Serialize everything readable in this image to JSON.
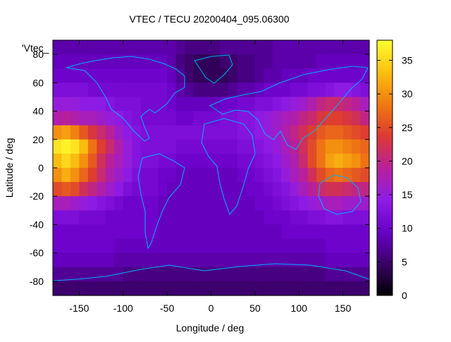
{
  "chart_data": {
    "type": "heatmap",
    "title": "VTEC / TECU 20200404_095.06300",
    "xlabel": "Longitude / deg",
    "ylabel": "Latitude / deg",
    "series_key": "'Vtec_",
    "xlim": [
      -180,
      180
    ],
    "ylim": [
      -90,
      90
    ],
    "x_ticks": [
      -150,
      -100,
      -50,
      0,
      50,
      100,
      150
    ],
    "y_ticks": [
      -80,
      -60,
      -40,
      -20,
      0,
      20,
      40,
      60,
      80
    ],
    "colorbar": {
      "min": 0,
      "max": 38,
      "ticks": [
        0,
        5,
        10,
        15,
        20,
        25,
        30,
        35
      ]
    },
    "grid": false,
    "colormap": [
      "#000000",
      "#3a0068",
      "#6a00c8",
      "#8f1ce6",
      "#b8209a",
      "#dd3a32",
      "#f07a10",
      "#fbc010",
      "#ffff30"
    ],
    "values_description_free": true,
    "x": [
      -175,
      -165,
      -155,
      -145,
      -135,
      -125,
      -115,
      -105,
      -95,
      -85,
      -75,
      -65,
      -55,
      -45,
      -35,
      -25,
      -15,
      -5,
      5,
      15,
      25,
      35,
      45,
      55,
      65,
      75,
      85,
      95,
      105,
      115,
      125,
      135,
      145,
      155,
      165,
      175
    ],
    "y": [
      85,
      75,
      65,
      55,
      45,
      35,
      25,
      15,
      5,
      -5,
      -15,
      -25,
      -35,
      -45,
      -55,
      -65,
      -75,
      -85
    ],
    "z": [
      [
        8,
        8,
        8,
        8,
        8,
        8,
        8,
        8,
        8,
        8,
        8,
        8,
        8,
        8,
        7,
        6,
        6,
        6,
        6,
        7,
        7,
        7,
        7,
        7,
        7,
        8,
        8,
        8,
        8,
        8,
        8,
        8,
        8,
        8,
        8,
        8
      ],
      [
        9,
        9,
        9,
        9,
        9,
        9,
        9,
        9,
        9,
        9,
        9,
        9,
        9,
        8,
        6,
        5,
        4,
        4,
        4,
        5,
        5,
        6,
        6,
        7,
        7,
        8,
        8,
        8,
        8,
        8,
        9,
        9,
        9,
        9,
        9,
        9
      ],
      [
        10,
        10,
        10,
        10,
        10,
        10,
        10,
        10,
        10,
        10,
        10,
        10,
        10,
        9,
        7,
        5,
        4,
        4,
        4,
        4,
        5,
        6,
        6,
        7,
        8,
        8,
        9,
        9,
        9,
        10,
        10,
        10,
        10,
        10,
        10,
        10
      ],
      [
        12,
        12,
        12,
        12,
        11,
        11,
        11,
        11,
        11,
        11,
        11,
        11,
        11,
        10,
        8,
        7,
        6,
        6,
        6,
        6,
        7,
        8,
        8,
        9,
        10,
        10,
        10,
        11,
        11,
        12,
        12,
        13,
        14,
        14,
        13,
        12
      ],
      [
        15,
        15,
        15,
        14,
        14,
        14,
        13,
        12,
        12,
        12,
        11,
        11,
        11,
        10,
        9,
        9,
        9,
        9,
        9,
        10,
        10,
        11,
        11,
        12,
        12,
        13,
        14,
        15,
        16,
        18,
        20,
        21,
        21,
        20,
        19,
        17
      ],
      [
        18,
        19,
        18,
        17,
        17,
        16,
        15,
        14,
        13,
        12,
        11,
        11,
        11,
        11,
        10,
        10,
        11,
        11,
        11,
        12,
        12,
        13,
        13,
        14,
        15,
        16,
        17,
        18,
        20,
        21,
        23,
        24,
        24,
        23,
        22,
        20
      ],
      [
        30,
        31,
        29,
        26,
        23,
        21,
        19,
        16,
        14,
        13,
        12,
        12,
        12,
        12,
        12,
        12,
        12,
        12,
        12,
        12,
        12,
        13,
        13,
        14,
        15,
        16,
        18,
        20,
        22,
        24,
        26,
        27,
        27,
        26,
        25,
        24
      ],
      [
        36,
        37,
        36,
        33,
        28,
        24,
        21,
        18,
        15,
        13,
        12,
        12,
        12,
        12,
        11,
        11,
        11,
        11,
        11,
        11,
        11,
        12,
        12,
        13,
        14,
        15,
        17,
        19,
        22,
        25,
        28,
        30,
        30,
        29,
        28,
        27
      ],
      [
        33,
        35,
        33,
        30,
        26,
        22,
        19,
        17,
        15,
        13,
        12,
        12,
        11,
        11,
        10,
        10,
        10,
        10,
        10,
        10,
        10,
        11,
        11,
        12,
        13,
        14,
        16,
        18,
        21,
        25,
        28,
        31,
        32,
        31,
        30,
        28
      ],
      [
        30,
        32,
        30,
        27,
        24,
        21,
        18,
        16,
        14,
        12,
        11,
        11,
        10,
        10,
        9,
        9,
        9,
        9,
        9,
        9,
        9,
        10,
        10,
        11,
        12,
        13,
        15,
        17,
        19,
        22,
        25,
        27,
        28,
        27,
        26,
        25
      ],
      [
        25,
        26,
        25,
        22,
        20,
        18,
        16,
        14,
        12,
        11,
        11,
        11,
        10,
        9,
        9,
        9,
        9,
        9,
        9,
        9,
        9,
        9,
        10,
        10,
        11,
        12,
        13,
        15,
        17,
        19,
        21,
        22,
        22,
        21,
        20,
        20
      ],
      [
        17,
        17,
        16,
        15,
        14,
        13,
        12,
        11,
        10,
        10,
        10,
        10,
        9,
        9,
        9,
        9,
        9,
        9,
        9,
        9,
        9,
        9,
        9,
        10,
        10,
        11,
        12,
        13,
        14,
        15,
        16,
        17,
        17,
        16,
        16,
        16
      ],
      [
        12,
        12,
        12,
        11,
        11,
        11,
        10,
        10,
        10,
        10,
        10,
        10,
        9,
        9,
        9,
        9,
        9,
        9,
        9,
        9,
        9,
        9,
        9,
        9,
        10,
        10,
        10,
        11,
        11,
        12,
        12,
        13,
        13,
        12,
        12,
        12
      ],
      [
        10,
        10,
        10,
        10,
        10,
        10,
        10,
        10,
        10,
        10,
        10,
        10,
        9,
        9,
        9,
        9,
        9,
        9,
        9,
        9,
        9,
        9,
        9,
        9,
        9,
        9,
        10,
        10,
        10,
        10,
        10,
        10,
        10,
        10,
        10,
        10
      ],
      [
        10,
        10,
        10,
        10,
        10,
        10,
        10,
        9,
        9,
        9,
        9,
        9,
        9,
        9,
        9,
        9,
        9,
        9,
        9,
        9,
        9,
        9,
        9,
        9,
        9,
        9,
        9,
        9,
        9,
        9,
        9,
        10,
        10,
        10,
        10,
        10
      ],
      [
        9,
        9,
        9,
        9,
        9,
        9,
        9,
        8,
        8,
        8,
        8,
        8,
        8,
        8,
        8,
        8,
        8,
        8,
        8,
        8,
        8,
        8,
        8,
        8,
        8,
        8,
        8,
        8,
        8,
        8,
        8,
        9,
        9,
        9,
        9,
        9
      ],
      [
        7,
        7,
        7,
        7,
        7,
        7,
        7,
        7,
        6,
        6,
        6,
        6,
        6,
        6,
        6,
        6,
        6,
        6,
        6,
        6,
        6,
        6,
        6,
        6,
        6,
        6,
        6,
        6,
        6,
        6,
        6,
        7,
        7,
        7,
        7,
        7
      ],
      [
        5,
        5,
        5,
        5,
        5,
        5,
        5,
        5,
        5,
        5,
        5,
        5,
        5,
        5,
        5,
        5,
        5,
        5,
        5,
        5,
        5,
        5,
        5,
        5,
        5,
        5,
        5,
        5,
        5,
        5,
        5,
        5,
        5,
        5,
        5,
        5
      ]
    ]
  }
}
